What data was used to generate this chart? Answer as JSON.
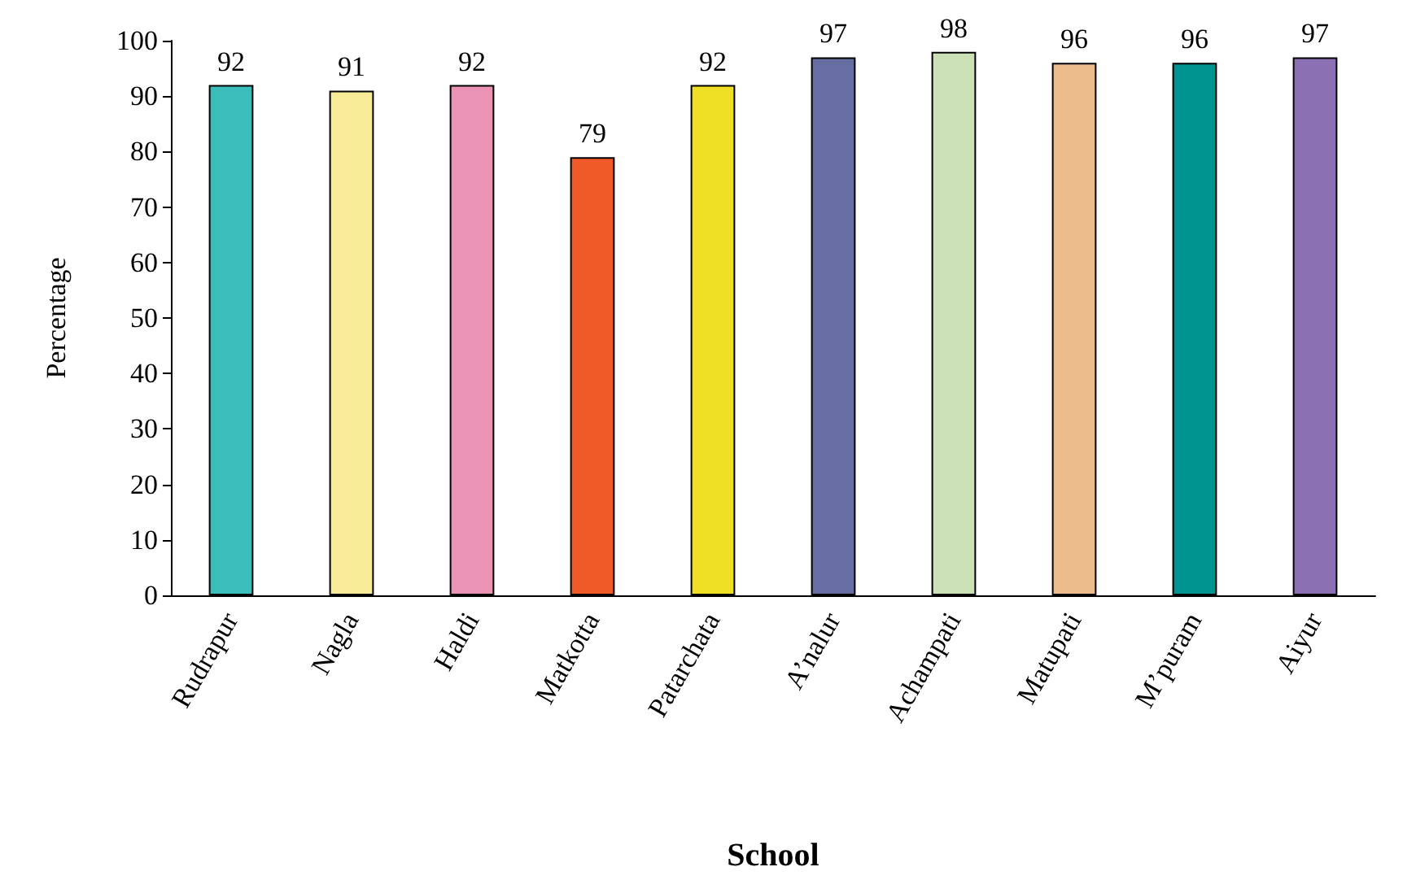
{
  "chart_data": {
    "type": "bar",
    "xlabel": "School",
    "ylabel": "Percentage",
    "categories": [
      "Rudrapur",
      "Nagla",
      "Haldi",
      "Matkotta",
      "Patarchata",
      "A’nalur",
      "Achampati",
      "Matupati",
      "M’puram",
      "Aiyur"
    ],
    "values": [
      92,
      91,
      92,
      79,
      92,
      97,
      98,
      96,
      96,
      97
    ],
    "colors": [
      "#3bbdbb",
      "#f8ec98",
      "#ea93b5",
      "#f05a28",
      "#efdf25",
      "#676ea1",
      "#cbe0b5",
      "#ecbc8a",
      "#009490",
      "#8b71b3"
    ],
    "ylim": [
      0,
      100
    ],
    "yticks": [
      0,
      10,
      20,
      30,
      40,
      50,
      60,
      70,
      80,
      90,
      100
    ],
    "data_labels": true,
    "grid": false
  }
}
